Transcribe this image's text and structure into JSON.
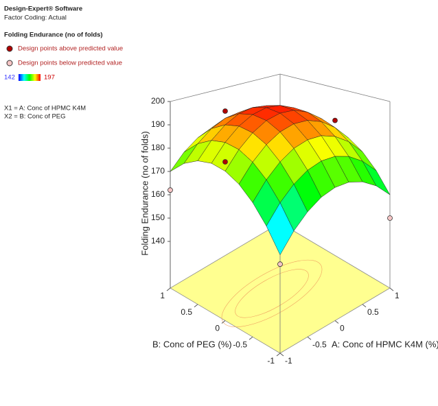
{
  "header": {
    "software": "Design-Expert® Software",
    "coding": "Factor Coding: Actual",
    "response": "Folding Endurance (no of folds)",
    "factors": [
      "X1 = A: Conc of HPMC K4M",
      "X2 = B: Conc of PEG"
    ]
  },
  "chart_data": {
    "type": "surface",
    "zlabel": "Folding Endurance (no of folds)",
    "xlabel": "A: Conc of HPMC K4M (%)",
    "ylabel": "B: Conc of PEG  (%)",
    "x": [
      -1,
      -0.75,
      -0.5,
      -0.25,
      0,
      0.25,
      0.5,
      0.75,
      1
    ],
    "y": [
      -1,
      -0.75,
      -0.5,
      -0.25,
      0,
      0.25,
      0.5,
      0.75,
      1
    ],
    "z": [
      [
        146,
        154.8,
        161.5,
        166.3,
        169,
        169.8,
        168.5,
        165.3,
        160
      ],
      [
        156.9,
        165.4,
        171.9,
        176.4,
        178.9,
        179.4,
        177.9,
        174.4,
        168.9
      ],
      [
        165.5,
        173.8,
        180,
        184.3,
        186.5,
        186.8,
        185,
        181.3,
        175.5
      ],
      [
        171.9,
        179.9,
        185.9,
        189.9,
        191.9,
        191.9,
        189.9,
        185.9,
        179.9
      ],
      [
        176,
        183.8,
        189.5,
        193.3,
        195,
        194.8,
        192.5,
        188.3,
        182
      ],
      [
        177.9,
        185.4,
        190.9,
        194.4,
        195.9,
        195.4,
        192.9,
        188.4,
        181.9
      ],
      [
        177.5,
        184.8,
        190,
        193.3,
        194.5,
        193.8,
        191,
        186.3,
        179.5
      ],
      [
        174.9,
        181.9,
        186.9,
        189.9,
        190.9,
        189.9,
        186.9,
        181.9,
        174.9
      ],
      [
        170,
        176.8,
        181.5,
        184.3,
        185,
        183.8,
        180.5,
        175.3,
        168
      ]
    ],
    "xlim": [
      -1,
      1
    ],
    "ylim": [
      -1,
      1
    ],
    "zlim": [
      120,
      200
    ],
    "xticks": [
      -1,
      -0.5,
      0,
      0.5,
      1
    ],
    "yticks": [
      -1,
      -0.5,
      0,
      0.5,
      1
    ],
    "zticks": [
      140,
      150,
      160,
      170,
      180,
      190,
      200
    ],
    "color_scale": {
      "min": 142,
      "max": 197,
      "colors": [
        "#0000ff",
        "#00ffff",
        "#00ff00",
        "#ffff00",
        "#ff0000"
      ]
    },
    "floor_color": "#ffff90",
    "series": [
      {
        "name": "Design points above predicted value",
        "color": "#b00000",
        "x": [
          0,
          1,
          -1
        ],
        "y": [
          1,
          0,
          0
        ],
        "z": [
          190,
          186,
          180
        ]
      },
      {
        "name": "Design points below predicted value",
        "color": "#f6c6c6",
        "x": [
          -1,
          -1,
          1
        ],
        "y": [
          1,
          -1,
          -1
        ],
        "z": [
          162,
          142,
          150
        ]
      }
    ]
  }
}
